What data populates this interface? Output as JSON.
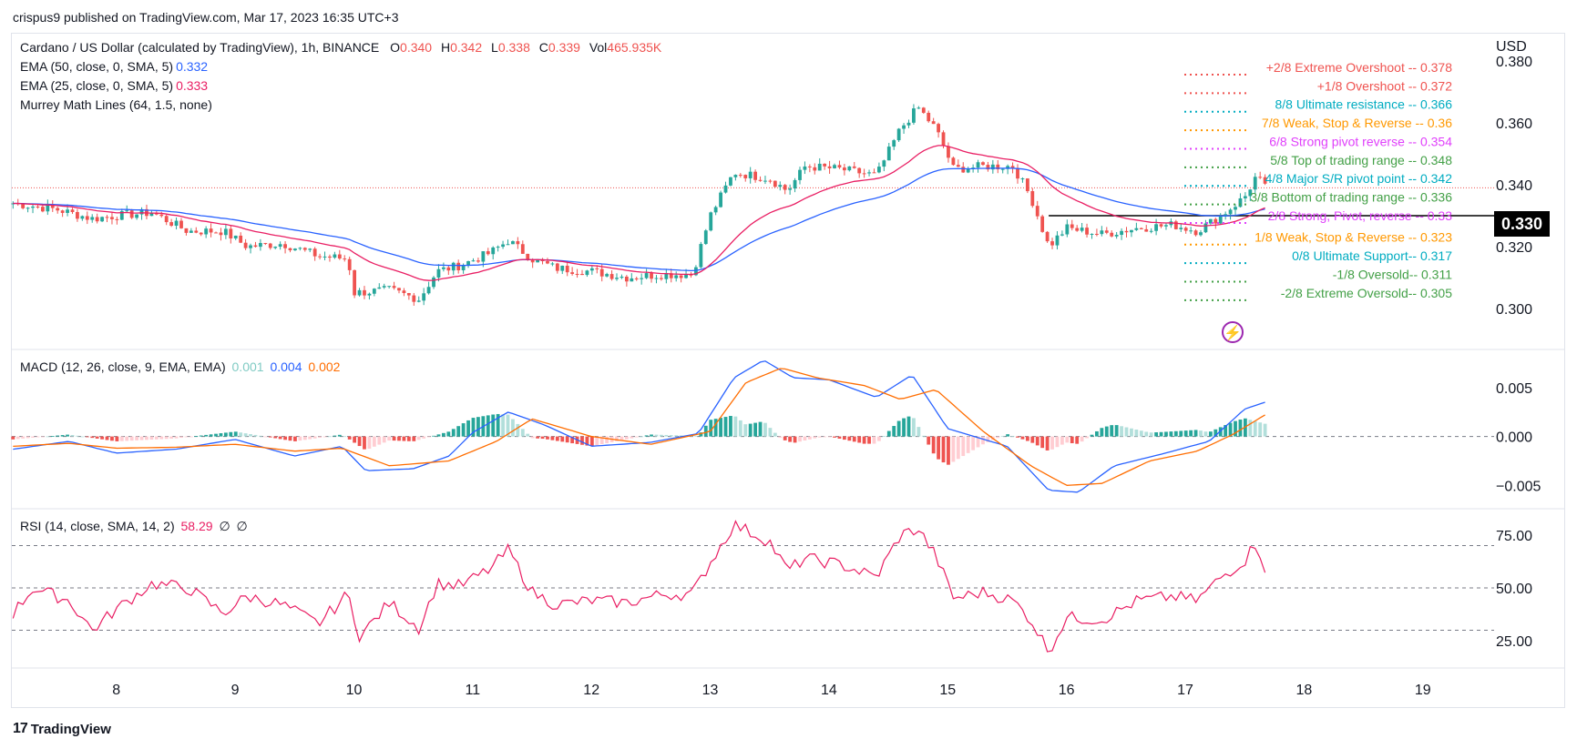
{
  "header": {
    "published": "crispus9 published on TradingView.com, Mar 17, 2023 16:35 UTC+3"
  },
  "legend": {
    "symbol": "Cardano / US Dollar (calculated by TradingView), 1h, BINANCE",
    "o_label": "O",
    "o": "0.340",
    "h_label": "H",
    "h": "0.342",
    "l_label": "L",
    "l": "0.338",
    "c_label": "C",
    "c": "0.339",
    "vol_label": "Vol",
    "vol": "465.935K",
    "ema50": "EMA (50, close, 0, SMA, 5)",
    "ema50_val": "0.332",
    "ema25": "EMA (25, close, 0, SMA, 5)",
    "ema25_val": "0.333",
    "murrey": "Murrey Math Lines (64, 1.5, none)",
    "macd": "MACD (12, 26, close, 9, EMA, EMA)",
    "macd_hist": "0.001",
    "macd_line": "0.004",
    "macd_signal": "0.002",
    "rsi": "RSI (14, close, SMA, 14, 2)",
    "rsi_val": "58.29",
    "rsi_x1": "∅",
    "rsi_x2": "∅"
  },
  "axis": {
    "currency": "USD",
    "current_price": "0.330"
  },
  "footer": {
    "brand": "TradingView",
    "logo": "17"
  },
  "colors": {
    "up": "#26a69a",
    "down": "#ef5350",
    "ema50": "#2962ff",
    "ema25": "#e91e63",
    "macd": "#2962ff",
    "signal": "#ff6d00",
    "rsi": "#e91e63",
    "grid_dash": "#787b86"
  },
  "chart_data": [
    {
      "type": "candlestick",
      "title": "Cardano / US Dollar (calculated by TradingView), 1h, BINANCE",
      "ylabel": "USD",
      "ylim": [
        0.287,
        0.388
      ],
      "yticks": [
        0.3,
        0.32,
        0.34,
        0.36,
        0.38
      ],
      "ytick_labels": [
        "0.300",
        "0.320",
        "0.340",
        "0.360",
        "0.380"
      ],
      "xlim": [
        7.12,
        19.6
      ],
      "xticks": [
        8,
        9,
        10,
        11,
        12,
        13,
        14,
        15,
        16,
        17,
        18,
        19
      ],
      "xtick_labels": [
        "8",
        "9",
        "10",
        "11",
        "12",
        "13",
        "14",
        "15",
        "16",
        "17",
        "18",
        "19"
      ],
      "close_anchors": [
        [
          7.13,
          0.334
        ],
        [
          7.5,
          0.332
        ],
        [
          7.8,
          0.329
        ],
        [
          8.0,
          0.33
        ],
        [
          8.3,
          0.331
        ],
        [
          8.6,
          0.325
        ],
        [
          8.9,
          0.325
        ],
        [
          9.1,
          0.32
        ],
        [
          9.4,
          0.321
        ],
        [
          9.7,
          0.317
        ],
        [
          9.95,
          0.316
        ],
        [
          10.0,
          0.305
        ],
        [
          10.3,
          0.306
        ],
        [
          10.55,
          0.303
        ],
        [
          10.7,
          0.312
        ],
        [
          10.9,
          0.314
        ],
        [
          11.15,
          0.318
        ],
        [
          11.3,
          0.322
        ],
        [
          11.5,
          0.316
        ],
        [
          11.7,
          0.313
        ],
        [
          12.0,
          0.312
        ],
        [
          12.3,
          0.31
        ],
        [
          12.6,
          0.311
        ],
        [
          12.85,
          0.311
        ],
        [
          13.0,
          0.33
        ],
        [
          13.2,
          0.344
        ],
        [
          13.5,
          0.342
        ],
        [
          13.65,
          0.338
        ],
        [
          13.8,
          0.346
        ],
        [
          14.1,
          0.345
        ],
        [
          14.4,
          0.343
        ],
        [
          14.6,
          0.358
        ],
        [
          14.75,
          0.365
        ],
        [
          14.9,
          0.358
        ],
        [
          15.05,
          0.345
        ],
        [
          15.3,
          0.346
        ],
        [
          15.55,
          0.346
        ],
        [
          15.7,
          0.336
        ],
        [
          15.85,
          0.32
        ],
        [
          16.0,
          0.326
        ],
        [
          16.3,
          0.324
        ],
        [
          16.6,
          0.326
        ],
        [
          16.9,
          0.327
        ],
        [
          17.1,
          0.325
        ],
        [
          17.3,
          0.33
        ],
        [
          17.5,
          0.336
        ],
        [
          17.6,
          0.343
        ],
        [
          17.67,
          0.339
        ]
      ],
      "murrey_lines": [
        {
          "label": "+2/8 Extreme Overshoot --  0.378",
          "value": 0.378,
          "color": "#ef5350"
        },
        {
          "label": "+1/8 Overshoot --  0.372",
          "value": 0.372,
          "color": "#ef5350"
        },
        {
          "label": "8/8 Ultimate resistance --  0.366",
          "value": 0.366,
          "color": "#00acc1"
        },
        {
          "label": "7/8 Weak, Stop & Reverse --  0.36",
          "value": 0.36,
          "color": "#ff9800"
        },
        {
          "label": "6/8 Strong pivot reverse --  0.354",
          "value": 0.354,
          "color": "#e040fb"
        },
        {
          "label": "5/8 Top of trading range --  0.348",
          "value": 0.348,
          "color": "#43a047"
        },
        {
          "label": "4/8 Major S/R pivot point --  0.342",
          "value": 0.342,
          "color": "#00acc1"
        },
        {
          "label": "3/8 Bottom of trading range --  0.336",
          "value": 0.336,
          "color": "#43a047"
        },
        {
          "label": "2/8 Strong, Pivot, reverse --  0.33",
          "value": 0.33,
          "color": "#e040fb"
        },
        {
          "label": "1/8 Weak, Stop & Reverse --  0.323",
          "value": 0.323,
          "color": "#ff9800"
        },
        {
          "label": "0/8 Ultimate Support--  0.317",
          "value": 0.317,
          "color": "#00acc1"
        },
        {
          "label": "-1/8 Oversold--  0.311",
          "value": 0.311,
          "color": "#43a047"
        },
        {
          "label": "-2/8 Extreme Oversold--  0.305",
          "value": 0.305,
          "color": "#43a047"
        }
      ],
      "horizontal_level": 0.33,
      "last_price_line": 0.339
    },
    {
      "type": "line",
      "title": "MACD (12, 26, close, 9, EMA, EMA)",
      "ylim": [
        -0.0072,
        0.0088
      ],
      "yticks": [
        -0.005,
        0.0,
        0.005
      ],
      "ytick_labels": [
        "−0.005",
        "0.000",
        "0.005"
      ],
      "macd_anchors": [
        [
          7.13,
          -0.0013
        ],
        [
          7.6,
          -0.0005
        ],
        [
          8.0,
          -0.0017
        ],
        [
          8.5,
          -0.0013
        ],
        [
          9.0,
          -0.0003
        ],
        [
          9.5,
          -0.002
        ],
        [
          9.9,
          -0.001
        ],
        [
          10.1,
          -0.0035
        ],
        [
          10.5,
          -0.0033
        ],
        [
          10.8,
          -0.002
        ],
        [
          11.0,
          0.0004
        ],
        [
          11.3,
          0.0025
        ],
        [
          11.6,
          0.0012
        ],
        [
          12.0,
          -0.001
        ],
        [
          12.5,
          -0.0006
        ],
        [
          12.9,
          0.0003
        ],
        [
          13.2,
          0.006
        ],
        [
          13.45,
          0.0078
        ],
        [
          13.7,
          0.006
        ],
        [
          14.0,
          0.0058
        ],
        [
          14.4,
          0.004
        ],
        [
          14.7,
          0.0063
        ],
        [
          15.0,
          0.0008
        ],
        [
          15.5,
          -0.001
        ],
        [
          15.85,
          -0.0055
        ],
        [
          16.1,
          -0.0057
        ],
        [
          16.4,
          -0.003
        ],
        [
          16.8,
          -0.0018
        ],
        [
          17.2,
          -0.0005
        ],
        [
          17.5,
          0.0028
        ],
        [
          17.67,
          0.0035
        ]
      ],
      "signal_anchors": [
        [
          7.13,
          -0.001
        ],
        [
          7.6,
          -0.0007
        ],
        [
          8.0,
          -0.0012
        ],
        [
          8.5,
          -0.0011
        ],
        [
          9.0,
          -0.0008
        ],
        [
          9.5,
          -0.0015
        ],
        [
          9.9,
          -0.0012
        ],
        [
          10.3,
          -0.003
        ],
        [
          10.8,
          -0.0025
        ],
        [
          11.2,
          -0.0005
        ],
        [
          11.5,
          0.0018
        ],
        [
          12.0,
          0.0
        ],
        [
          12.5,
          -0.0008
        ],
        [
          13.0,
          0.0005
        ],
        [
          13.3,
          0.0055
        ],
        [
          13.6,
          0.007
        ],
        [
          13.9,
          0.006
        ],
        [
          14.3,
          0.0052
        ],
        [
          14.6,
          0.0038
        ],
        [
          14.9,
          0.0048
        ],
        [
          15.3,
          0.0005
        ],
        [
          15.7,
          -0.003
        ],
        [
          16.0,
          -0.005
        ],
        [
          16.3,
          -0.0048
        ],
        [
          16.7,
          -0.0025
        ],
        [
          17.1,
          -0.0015
        ],
        [
          17.4,
          0.0002
        ],
        [
          17.67,
          0.0022
        ]
      ]
    },
    {
      "type": "line",
      "title": "RSI (14, close, SMA, 14, 2)",
      "ylim": [
        13,
        87
      ],
      "yticks": [
        25,
        50,
        75
      ],
      "ytick_labels": [
        "25.00",
        "50.00",
        "75.00"
      ],
      "bands": [
        30,
        50,
        70
      ],
      "rsi_anchors": [
        [
          7.13,
          38
        ],
        [
          7.3,
          50
        ],
        [
          7.6,
          44
        ],
        [
          7.8,
          30
        ],
        [
          8.0,
          40
        ],
        [
          8.3,
          52
        ],
        [
          8.6,
          50
        ],
        [
          8.9,
          38
        ],
        [
          9.1,
          46
        ],
        [
          9.4,
          42
        ],
        [
          9.7,
          33
        ],
        [
          9.95,
          47
        ],
        [
          10.05,
          27
        ],
        [
          10.3,
          43
        ],
        [
          10.55,
          31
        ],
        [
          10.7,
          52
        ],
        [
          10.9,
          51
        ],
        [
          11.15,
          59
        ],
        [
          11.3,
          68
        ],
        [
          11.5,
          48
        ],
        [
          11.7,
          42
        ],
        [
          12.0,
          44
        ],
        [
          12.3,
          43
        ],
        [
          12.6,
          47
        ],
        [
          12.85,
          47
        ],
        [
          13.0,
          62
        ],
        [
          13.2,
          80
        ],
        [
          13.5,
          72
        ],
        [
          13.65,
          58
        ],
        [
          13.8,
          64
        ],
        [
          14.1,
          61
        ],
        [
          14.4,
          55
        ],
        [
          14.6,
          75
        ],
        [
          14.75,
          78
        ],
        [
          14.9,
          65
        ],
        [
          15.05,
          45
        ],
        [
          15.3,
          48
        ],
        [
          15.55,
          44
        ],
        [
          15.7,
          35
        ],
        [
          15.85,
          20
        ],
        [
          16.0,
          36
        ],
        [
          16.3,
          35
        ],
        [
          16.6,
          44
        ],
        [
          16.9,
          46
        ],
        [
          17.1,
          44
        ],
        [
          17.3,
          55
        ],
        [
          17.5,
          63
        ],
        [
          17.6,
          72
        ],
        [
          17.67,
          59
        ]
      ]
    }
  ]
}
